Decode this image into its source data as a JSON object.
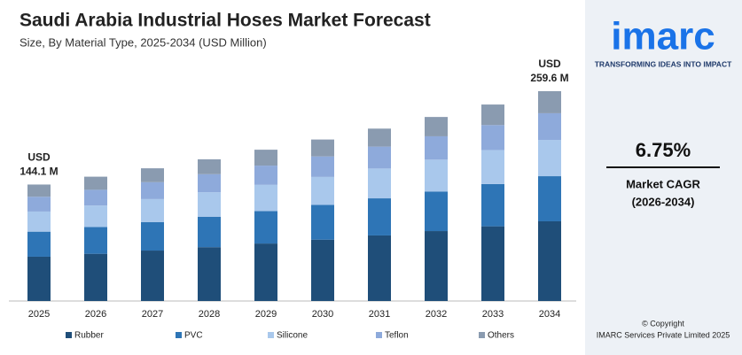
{
  "chart_data": {
    "type": "stacked-bar",
    "title": "Saudi Arabia Industrial Hoses Market Forecast",
    "subtitle": "Size, By Material Type, 2025-2034 (USD Million)",
    "categories": [
      "2025",
      "2026",
      "2027",
      "2028",
      "2029",
      "2030",
      "2031",
      "2032",
      "2033",
      "2034"
    ],
    "series": [
      {
        "name": "Rubber",
        "color": "#1f4e79",
        "values": [
          54.8,
          58.4,
          62.4,
          66.6,
          71.1,
          75.9,
          81.1,
          86.5,
          92.4,
          98.6
        ]
      },
      {
        "name": "PVC",
        "color": "#2e75b6",
        "values": [
          31.0,
          33.1,
          35.3,
          37.7,
          40.2,
          43.0,
          45.9,
          49.0,
          52.3,
          55.8
        ]
      },
      {
        "name": "Silicone",
        "color": "#a9c8ec",
        "values": [
          24.9,
          26.6,
          28.4,
          30.3,
          32.4,
          34.6,
          36.9,
          39.4,
          42.1,
          44.9
        ]
      },
      {
        "name": "Teflon",
        "color": "#8eaadb",
        "values": [
          18.3,
          19.5,
          20.9,
          22.3,
          23.8,
          25.4,
          27.1,
          28.9,
          30.9,
          33.0
        ]
      },
      {
        "name": "Others",
        "color": "#8a9bb0",
        "values": [
          15.1,
          16.2,
          17.2,
          18.4,
          19.7,
          20.9,
          22.3,
          23.9,
          25.4,
          27.3
        ]
      }
    ],
    "total_labels": [
      {
        "category": "2025",
        "value": 144.1,
        "lines": [
          "USD",
          "144.1 M"
        ]
      },
      {
        "category": "2034",
        "value": 259.6,
        "lines": [
          "USD",
          "259.6 M"
        ]
      }
    ],
    "legend": "bottom"
  },
  "panel": {
    "logo": "imarc",
    "tagline": "TRANSFORMING IDEAS INTO IMPACT",
    "cagr": "6.75%",
    "cagr_label": "Market CAGR",
    "cagr_period": "(2026-2034)",
    "copyright": "© Copyright",
    "company": "IMARC Services Private Limited 2025"
  }
}
